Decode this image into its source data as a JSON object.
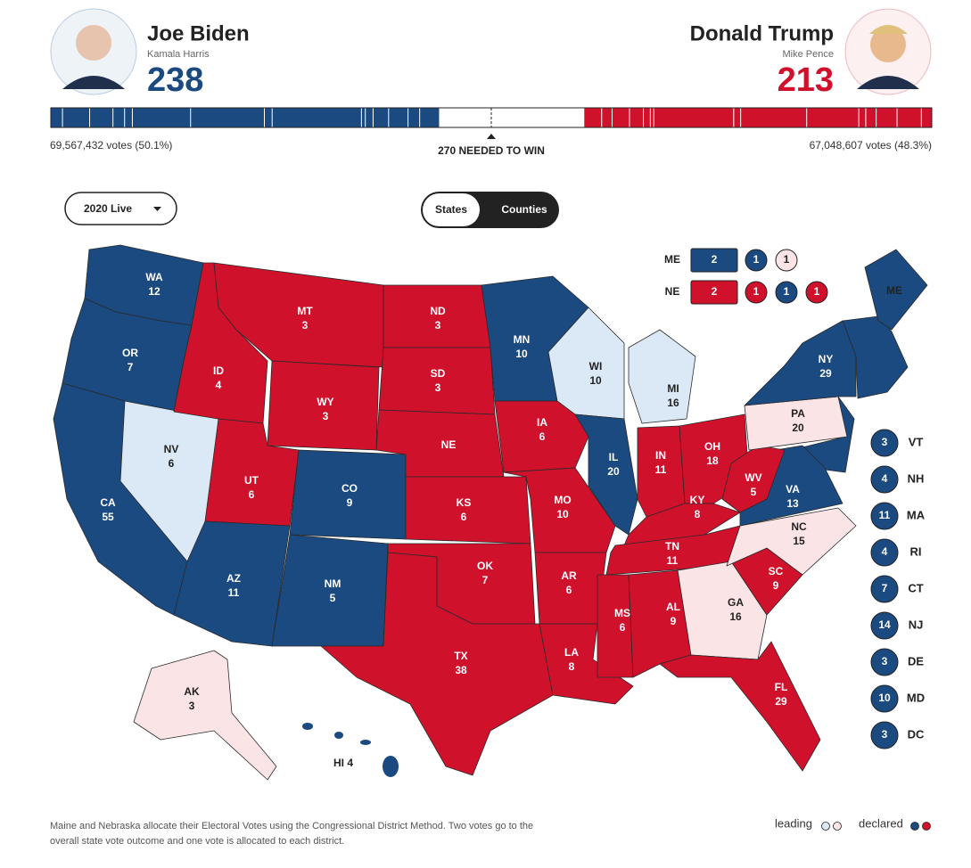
{
  "header": {
    "candidates": [
      {
        "name": "Joe Biden",
        "running_mate": "Kamala Harris",
        "electoral_votes": 238,
        "popular_votes": "69,567,432 votes (50.1%)",
        "color": "#1a4a80"
      },
      {
        "name": "Donald Trump",
        "running_mate": "Mike Pence",
        "electoral_votes": 213,
        "popular_votes": "67,048,607 votes (48.3%)",
        "color": "#d0112b"
      }
    ],
    "win_threshold": {
      "value": 270,
      "label": "270 NEEDED TO WIN"
    }
  },
  "controls": {
    "year_dropdown": "2020 Live",
    "view_toggle": [
      "States",
      "Counties"
    ]
  },
  "split_states": [
    {
      "abbr": "ME",
      "statewide": {
        "votes": 2,
        "color": "#1a4a80"
      },
      "districts": [
        {
          "votes": 1,
          "color": "#1a4a80"
        },
        {
          "votes": 1,
          "color": "#fbe4e6"
        }
      ]
    },
    {
      "abbr": "NE",
      "statewide": {
        "votes": 2,
        "color": "#d0112b"
      },
      "districts": [
        {
          "votes": 1,
          "color": "#d0112b"
        },
        {
          "votes": 1,
          "color": "#1a4a80"
        },
        {
          "votes": 1,
          "color": "#d0112b"
        }
      ]
    }
  ],
  "map": {
    "states": [
      {
        "abbr": "WA",
        "votes": 12,
        "color": "#1a4a80"
      },
      {
        "abbr": "OR",
        "votes": 7,
        "color": "#1a4a80"
      },
      {
        "abbr": "CA",
        "votes": 55,
        "color": "#1a4a80"
      },
      {
        "abbr": "NV",
        "votes": 6,
        "color": "#dbe9f7"
      },
      {
        "abbr": "ID",
        "votes": 4,
        "color": "#d0112b"
      },
      {
        "abbr": "MT",
        "votes": 3,
        "color": "#d0112b"
      },
      {
        "abbr": "WY",
        "votes": 3,
        "color": "#d0112b"
      },
      {
        "abbr": "UT",
        "votes": 6,
        "color": "#d0112b"
      },
      {
        "abbr": "CO",
        "votes": 9,
        "color": "#1a4a80"
      },
      {
        "abbr": "AZ",
        "votes": 11,
        "color": "#1a4a80"
      },
      {
        "abbr": "NM",
        "votes": 5,
        "color": "#1a4a80"
      },
      {
        "abbr": "ND",
        "votes": 3,
        "color": "#d0112b"
      },
      {
        "abbr": "SD",
        "votes": 3,
        "color": "#d0112b"
      },
      {
        "abbr": "NE",
        "color": "#d0112b"
      },
      {
        "abbr": "KS",
        "votes": 6,
        "color": "#d0112b"
      },
      {
        "abbr": "OK",
        "votes": 7,
        "color": "#d0112b"
      },
      {
        "abbr": "TX",
        "votes": 38,
        "color": "#d0112b"
      },
      {
        "abbr": "MN",
        "votes": 10,
        "color": "#1a4a80"
      },
      {
        "abbr": "IA",
        "votes": 6,
        "color": "#d0112b"
      },
      {
        "abbr": "MO",
        "votes": 10,
        "color": "#d0112b"
      },
      {
        "abbr": "AR",
        "votes": 6,
        "color": "#d0112b"
      },
      {
        "abbr": "LA",
        "votes": 8,
        "color": "#d0112b"
      },
      {
        "abbr": "WI",
        "votes": 10,
        "color": "#dbe9f7"
      },
      {
        "abbr": "IL",
        "votes": 20,
        "color": "#1a4a80"
      },
      {
        "abbr": "MI",
        "votes": 16,
        "color": "#dbe9f7"
      },
      {
        "abbr": "IN",
        "votes": 11,
        "color": "#d0112b"
      },
      {
        "abbr": "OH",
        "votes": 18,
        "color": "#d0112b"
      },
      {
        "abbr": "KY",
        "votes": 8,
        "color": "#d0112b"
      },
      {
        "abbr": "TN",
        "votes": 11,
        "color": "#d0112b"
      },
      {
        "abbr": "MS",
        "votes": 6,
        "color": "#d0112b"
      },
      {
        "abbr": "AL",
        "votes": 9,
        "color": "#d0112b"
      },
      {
        "abbr": "GA",
        "votes": 16,
        "color": "#fbe4e6"
      },
      {
        "abbr": "FL",
        "votes": 29,
        "color": "#d0112b"
      },
      {
        "abbr": "SC",
        "votes": 9,
        "color": "#d0112b"
      },
      {
        "abbr": "NC",
        "votes": 15,
        "color": "#fbe4e6"
      },
      {
        "abbr": "VA",
        "votes": 13,
        "color": "#1a4a80"
      },
      {
        "abbr": "WV",
        "votes": 5,
        "color": "#d0112b"
      },
      {
        "abbr": "PA",
        "votes": 20,
        "color": "#fbe4e6"
      },
      {
        "abbr": "NY",
        "votes": 29,
        "color": "#1a4a80"
      },
      {
        "abbr": "ME",
        "color": "#1a4a80"
      },
      {
        "abbr": "AK",
        "votes": 3,
        "color": "#fbe4e6"
      },
      {
        "abbr": "HI",
        "votes": 4,
        "color": "#1a4a80"
      }
    ]
  },
  "small_states": [
    {
      "abbr": "VT",
      "votes": 3,
      "color": "#1a4a80"
    },
    {
      "abbr": "NH",
      "votes": 4,
      "color": "#1a4a80"
    },
    {
      "abbr": "MA",
      "votes": 11,
      "color": "#1a4a80"
    },
    {
      "abbr": "RI",
      "votes": 4,
      "color": "#1a4a80"
    },
    {
      "abbr": "CT",
      "votes": 7,
      "color": "#1a4a80"
    },
    {
      "abbr": "NJ",
      "votes": 14,
      "color": "#1a4a80"
    },
    {
      "abbr": "DE",
      "votes": 3,
      "color": "#1a4a80"
    },
    {
      "abbr": "MD",
      "votes": 10,
      "color": "#1a4a80"
    },
    {
      "abbr": "DC",
      "votes": 3,
      "color": "#1a4a80"
    }
  ],
  "footer": {
    "note": [
      "Maine and Nebraska allocate their Electoral Votes using the Congressional District Method. Two votes go to the",
      "overall state vote outcome and one vote is allocated to each district."
    ],
    "legend": [
      {
        "label": "leading",
        "colors": [
          "#dbe9f7",
          "#fbe4e6"
        ]
      },
      {
        "label": "declared",
        "colors": [
          "#1a4a80",
          "#d0112b"
        ]
      }
    ]
  }
}
